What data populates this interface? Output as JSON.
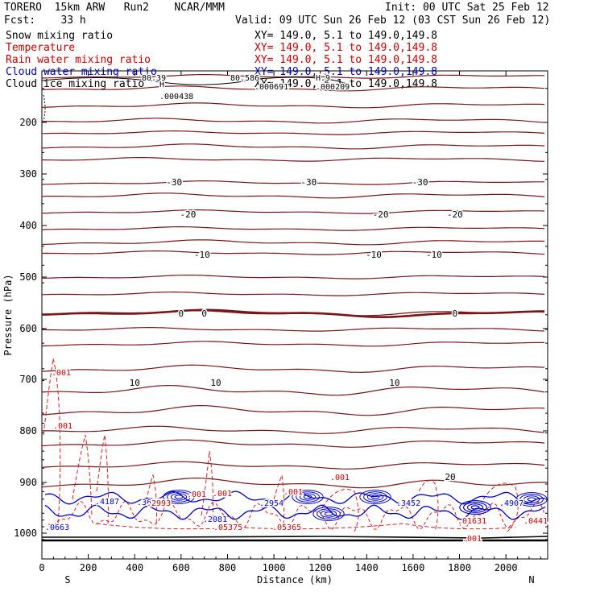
{
  "header": {
    "model": "TORERO  15km ARW   Run2    NCAR/MMM",
    "init": "Init: 00 UTC Sat 25 Feb 12",
    "fcst": "Fcst:    33 h",
    "valid": "Valid: 09 UTC Sun 26 Feb 12 (03 CST Sun 26 Feb 12)"
  },
  "legend": [
    {
      "label": "Snow mixing ratio",
      "xy": "XY= 149.0,  5.1 to 149.0,149.8",
      "color": "#000000"
    },
    {
      "label": "Temperature",
      "xy": "XY= 149.0,  5.1 to 149.0,149.8",
      "color": "#cc0000"
    },
    {
      "label": "Rain water mixing ratio",
      "xy": "XY= 149.0,  5.1 to 149.0,149.8",
      "color": "#cc0000"
    },
    {
      "label": "Cloud water mixing ratio",
      "xy": "XY= 149.0,  5.1 to 149.0,149.8",
      "color": "#0000cc"
    },
    {
      "label": "Cloud ice mixing ratio",
      "xy": "XY= 149.0,  5.1 to 149.0,149.8",
      "color": "#000000"
    }
  ],
  "chart_data": {
    "type": "contour-cross-section",
    "xlabel": "Distance (km)",
    "ylabel": "Pressure (hPa)",
    "xlim": [
      0,
      2180
    ],
    "ylim": [
      1050,
      100
    ],
    "xticks": [
      "0",
      "200",
      "400",
      "600",
      "800",
      "1000",
      "1200",
      "1400",
      "1600",
      "1800",
      "2000"
    ],
    "yticks": [
      "200",
      "300",
      "400",
      "500",
      "600",
      "700",
      "800",
      "900",
      "1000"
    ],
    "end_labels": {
      "left": "S",
      "right": "N"
    },
    "temperature_isotherms": [
      {
        "value": -30,
        "label": "-30",
        "label_x_km": [
          570,
          1150,
          1630
        ]
      },
      {
        "value": -20,
        "label": "-20",
        "label_x_km": [
          630,
          1460,
          1780
        ]
      },
      {
        "value": -10,
        "label": "-10",
        "label_x_km": [
          690,
          1430,
          1690
        ]
      },
      {
        "value": 0,
        "label": "0",
        "label_x_km": [
          600,
          700,
          1780
        ]
      },
      {
        "value": 10,
        "label": "10",
        "label_x_km": [
          400,
          750,
          1520
        ]
      },
      {
        "value": 20,
        "label": "20",
        "label_x_km": [
          1760
        ]
      }
    ],
    "min_max_annotations": [
      {
        "text": "H",
        "color": "#000000"
      },
      {
        "text": "80.39",
        "color": "#000000"
      },
      {
        "text": "80.586",
        "color": "#000000"
      },
      {
        "text": ".000438",
        "color": "#000000"
      },
      {
        "text": ".000691",
        "color": "#000000"
      },
      {
        "text": ".000209",
        "color": "#000000"
      },
      {
        "text": "H.9",
        "color": "#000000"
      },
      {
        "text": ".001",
        "color": "#cc0000"
      },
      {
        "text": ".4187",
        "color": "#0000cc"
      },
      {
        "text": ".3695",
        "color": "#0000cc"
      },
      {
        "text": ".2954",
        "color": "#0000cc"
      },
      {
        "text": ".2081",
        "color": "#0000cc"
      },
      {
        "text": ".05375",
        "color": "#cc0000"
      },
      {
        "text": ".05365",
        "color": "#cc0000"
      },
      {
        "text": ".0663",
        "color": "#0000cc"
      },
      {
        "text": ".01631",
        "color": "#cc0000"
      },
      {
        "text": ".4907",
        "color": "#0000cc"
      },
      {
        "text": ".0441",
        "color": "#cc0000"
      },
      {
        "text": ".3452",
        "color": "#0000cc"
      },
      {
        "text": ".2993",
        "color": "#cc0000"
      }
    ]
  }
}
